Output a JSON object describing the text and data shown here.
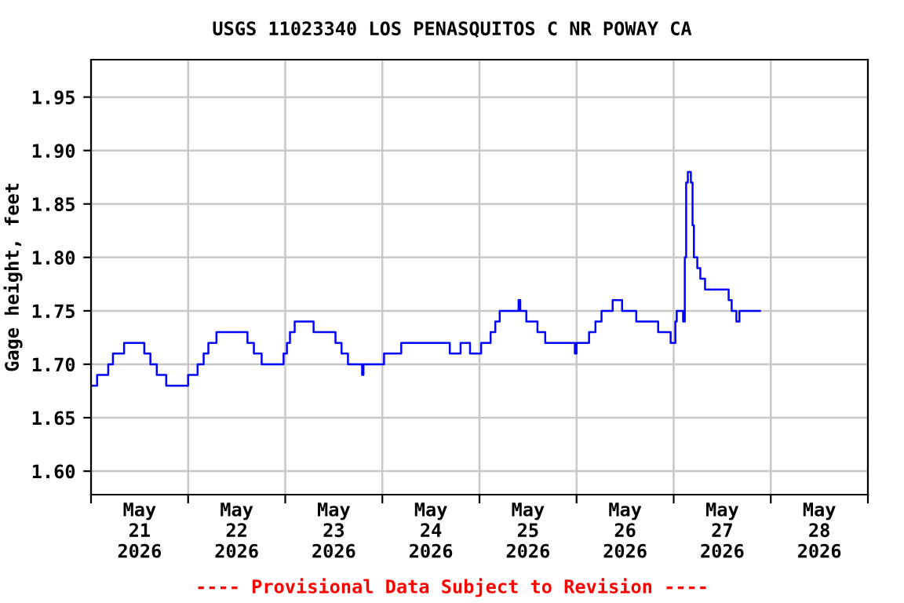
{
  "chart_data": {
    "type": "step",
    "title": "USGS 11023340 LOS PENASQUITOS C NR POWAY CA",
    "ylabel": "Gage height, feet",
    "annotations": [
      "---- Provisional Data Subject to Revision ----"
    ],
    "x": [
      "2026-05-21T00:00",
      "2026-05-21T01:30",
      "2026-05-21T04:15",
      "2026-05-21T05:25",
      "2026-05-21T08:10",
      "2026-05-21T13:10",
      "2026-05-21T14:40",
      "2026-05-21T16:15",
      "2026-05-21T18:35",
      "2026-05-22T00:00",
      "2026-05-22T02:20",
      "2026-05-22T03:50",
      "2026-05-22T05:00",
      "2026-05-22T07:00",
      "2026-05-22T14:40",
      "2026-05-22T16:15",
      "2026-05-22T18:10",
      "2026-05-22T23:35",
      "2026-05-23T00:25",
      "2026-05-23T01:10",
      "2026-05-23T02:20",
      "2026-05-23T07:00",
      "2026-05-23T12:25",
      "2026-05-23T13:55",
      "2026-05-23T15:30",
      "2026-05-23T19:00",
      "2026-05-23T19:20",
      "2026-05-24T00:25",
      "2026-05-24T04:40",
      "2026-05-24T16:40",
      "2026-05-24T19:20",
      "2026-05-24T21:40",
      "2026-05-25T00:25",
      "2026-05-25T02:45",
      "2026-05-25T03:55",
      "2026-05-25T05:00",
      "2026-05-25T09:40",
      "2026-05-25T10:05",
      "2026-05-25T11:35",
      "2026-05-25T14:20",
      "2026-05-25T16:15",
      "2026-05-25T23:35",
      "2026-05-26T00:00",
      "2026-05-26T03:05",
      "2026-05-26T04:40",
      "2026-05-26T06:10",
      "2026-05-26T08:55",
      "2026-05-26T11:15",
      "2026-05-26T14:45",
      "2026-05-26T20:10",
      "2026-05-26T23:15",
      "2026-05-27T00:25",
      "2026-05-27T00:45",
      "2026-05-27T02:20",
      "2026-05-27T02:45",
      "2026-05-27T03:05",
      "2026-05-27T03:30",
      "2026-05-27T04:15",
      "2026-05-27T04:40",
      "2026-05-27T05:00",
      "2026-05-27T05:50",
      "2026-05-27T06:35",
      "2026-05-27T07:45",
      "2026-05-27T13:35",
      "2026-05-27T14:20",
      "2026-05-27T15:30",
      "2026-05-27T16:15",
      "2026-05-27T21:20"
    ],
    "series": [
      {
        "color": "#0000ff",
        "values": [
          1.68,
          1.69,
          1.7,
          1.71,
          1.72,
          1.71,
          1.7,
          1.69,
          1.68,
          1.69,
          1.7,
          1.71,
          1.72,
          1.73,
          1.72,
          1.71,
          1.7,
          1.71,
          1.72,
          1.73,
          1.74,
          1.73,
          1.72,
          1.71,
          1.7,
          1.69,
          1.7,
          1.71,
          1.72,
          1.71,
          1.72,
          1.71,
          1.72,
          1.73,
          1.74,
          1.75,
          1.76,
          1.75,
          1.74,
          1.73,
          1.72,
          1.71,
          1.72,
          1.73,
          1.74,
          1.75,
          1.76,
          1.75,
          1.74,
          1.73,
          1.72,
          1.74,
          1.75,
          1.74,
          1.8,
          1.87,
          1.88,
          1.87,
          1.83,
          1.8,
          1.79,
          1.78,
          1.77,
          1.76,
          1.75,
          1.74,
          1.75,
          1.75
        ]
      }
    ],
    "xlim": [
      "2026-05-21T00:00",
      "2026-05-29T00:00"
    ],
    "xticks": [
      {
        "value": "2026-05-21T00:00",
        "label": null
      },
      {
        "value": "2026-05-21T12:00",
        "label": "May\n21\n2026"
      },
      {
        "value": "2026-05-22T00:00",
        "label": null
      },
      {
        "value": "2026-05-22T12:00",
        "label": "May\n22\n2026"
      },
      {
        "value": "2026-05-23T00:00",
        "label": null
      },
      {
        "value": "2026-05-23T12:00",
        "label": "May\n23\n2026"
      },
      {
        "value": "2026-05-24T00:00",
        "label": null
      },
      {
        "value": "2026-05-24T12:00",
        "label": "May\n24\n2026"
      },
      {
        "value": "2026-05-25T00:00",
        "label": null
      },
      {
        "value": "2026-05-25T12:00",
        "label": "May\n25\n2026"
      },
      {
        "value": "2026-05-26T00:00",
        "label": null
      },
      {
        "value": "2026-05-26T12:00",
        "label": "May\n26\n2026"
      },
      {
        "value": "2026-05-27T00:00",
        "label": null
      },
      {
        "value": "2026-05-27T12:00",
        "label": "May\n27\n2026"
      },
      {
        "value": "2026-05-28T00:00",
        "label": null
      },
      {
        "value": "2026-05-28T12:00",
        "label": "May\n28\n2026"
      },
      {
        "value": "2026-05-29T00:00",
        "label": null
      }
    ],
    "ylim": [
      1.578,
      1.985
    ],
    "yticks": [
      {
        "value": 1.6,
        "label": "1.60"
      },
      {
        "value": 1.65,
        "label": "1.65"
      },
      {
        "value": 1.7,
        "label": "1.70"
      },
      {
        "value": 1.75,
        "label": "1.75"
      },
      {
        "value": 1.8,
        "label": "1.80"
      },
      {
        "value": 1.85,
        "label": "1.85"
      },
      {
        "value": 1.9,
        "label": "1.90"
      },
      {
        "value": 1.95,
        "label": "1.95"
      }
    ],
    "grid": true
  }
}
